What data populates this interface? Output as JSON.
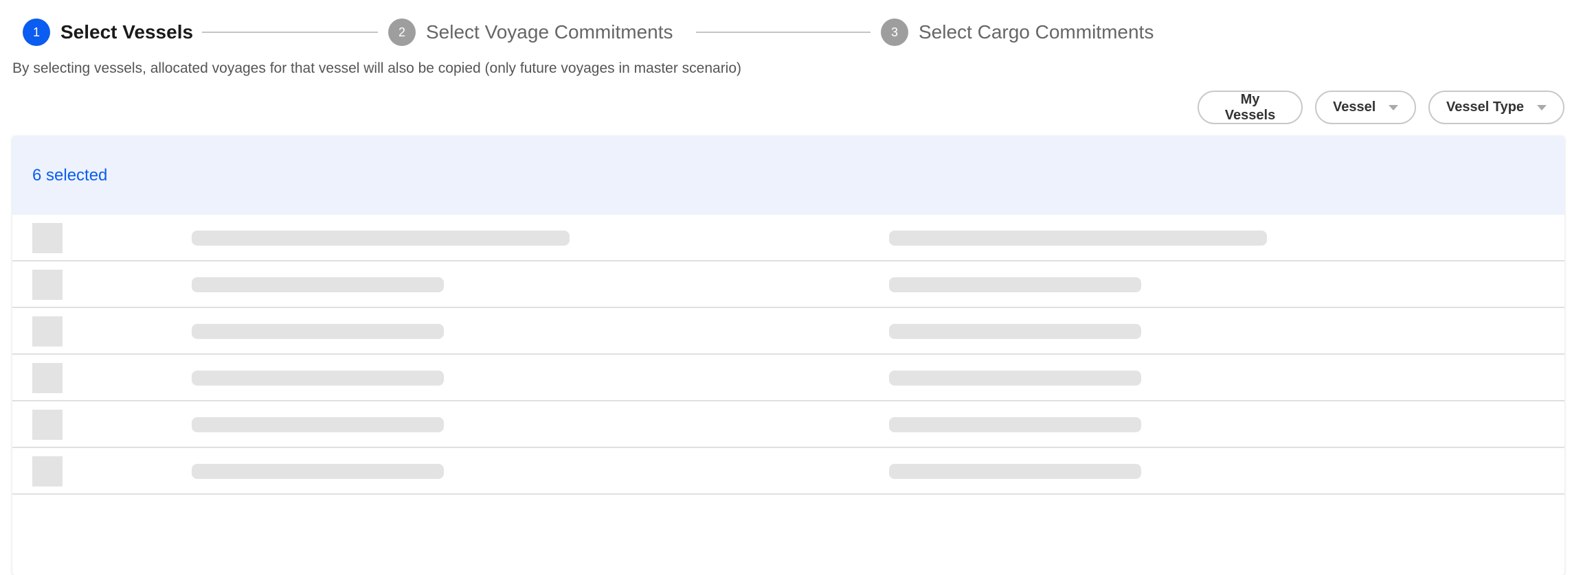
{
  "stepper": {
    "steps": [
      {
        "number": "1",
        "label": "Select Vessels",
        "state": "active"
      },
      {
        "number": "2",
        "label": "Select Voyage Commitments",
        "state": "inactive"
      },
      {
        "number": "3",
        "label": "Select Cargo Commitments",
        "state": "inactive"
      }
    ]
  },
  "subtitle": "By selecting vessels, allocated voyages for that vessel will also be copied (only future voyages in master scenario)",
  "filters": {
    "my_vessels": "My Vessels",
    "vessel": "Vessel",
    "vessel_type": "Vessel Type"
  },
  "table": {
    "selected_text": "6 selected",
    "loading_rows": 6
  },
  "colors": {
    "accent": "#0b5cf0",
    "header_bg": "#edf2fd",
    "skeleton": "#e3e3e3"
  }
}
